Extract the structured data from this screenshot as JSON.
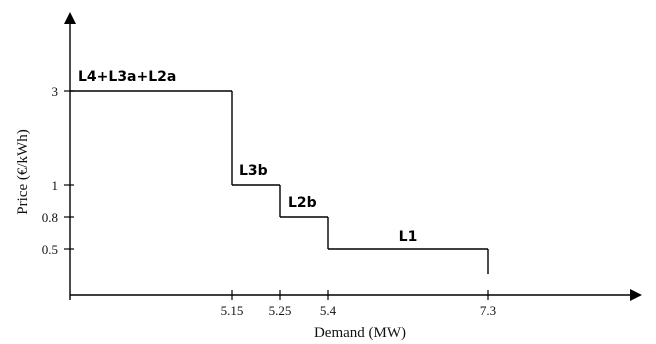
{
  "chart_data": {
    "type": "line",
    "step": true,
    "xlabel": "Demand (MW)",
    "ylabel": "Price (€/kWh)",
    "x_ticks": [
      5.15,
      5.25,
      5.4,
      7.3
    ],
    "x_tick_labels": [
      "5.15",
      "5.25",
      "5.4",
      "7.3"
    ],
    "y_ticks": [
      0.5,
      0.8,
      1,
      3
    ],
    "y_tick_labels": [
      "0.5",
      "0.8",
      "1",
      "3"
    ],
    "grid": false,
    "steps": [
      {
        "label": "L4+L3a+L2a",
        "x_start": 0,
        "x_end": 5.15,
        "price": 3
      },
      {
        "label": "L3b",
        "x_start": 5.15,
        "x_end": 5.25,
        "price": 1
      },
      {
        "label": "L2b",
        "x_start": 5.25,
        "x_end": 5.4,
        "price": 0.8
      },
      {
        "label": "L1",
        "x_start": 5.4,
        "x_end": 7.3,
        "price": 0.5
      }
    ]
  }
}
